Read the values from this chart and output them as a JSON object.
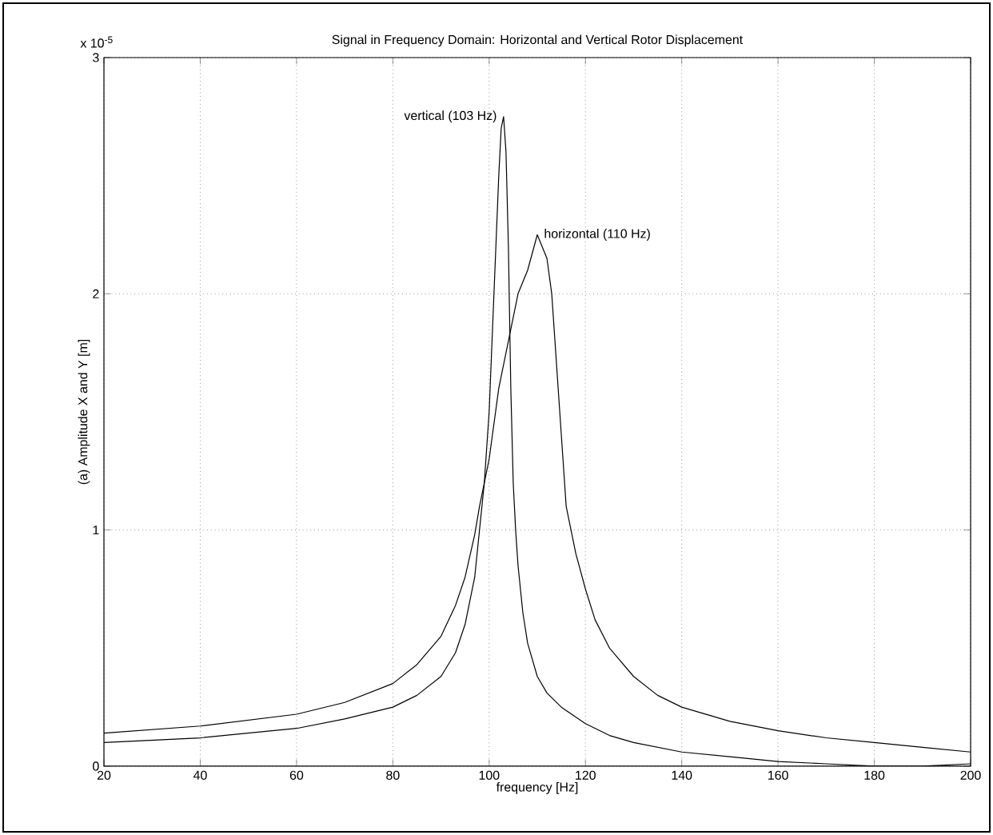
{
  "chart_data": {
    "type": "line",
    "title": "Signal in Frequency Domain:  Horizontal and Vertical Rotor Displacement",
    "xlabel": "frequency [Hz]",
    "ylabel": "(a) Amplitude X and Y [m]",
    "xlim": [
      20,
      200
    ],
    "xticks": [
      20,
      40,
      60,
      80,
      100,
      120,
      140,
      160,
      180,
      200
    ],
    "ylim": [
      0,
      3
    ],
    "yticks": [
      0,
      1,
      2,
      3
    ],
    "grid": true,
    "line_style": "solid",
    "annotations": [
      "x 10$^{-5}$",
      {
        "text": "vertical (103 Hz)",
        "x": 103,
        "y": 2.75
      },
      {
        "text": "horizontal (110 Hz)",
        "x": 110,
        "y": 2.25
      }
    ],
    "series": [
      {
        "color": "#000000",
        "x": [
          20,
          40,
          60,
          70,
          80,
          85,
          90,
          93,
          95,
          97,
          98,
          99,
          100,
          101,
          102,
          102.5,
          103,
          103.5,
          104,
          104.5,
          105,
          105.5,
          106,
          107,
          108,
          110,
          112,
          115,
          120,
          125,
          130,
          140,
          150,
          160,
          170,
          180,
          190,
          200
        ],
        "values": [
          0.1,
          0.12,
          0.16,
          0.2,
          0.25,
          0.3,
          0.38,
          0.48,
          0.6,
          0.8,
          1.0,
          1.2,
          1.5,
          2.0,
          2.5,
          2.7,
          2.75,
          2.6,
          2.2,
          1.6,
          1.2,
          1.0,
          0.85,
          0.65,
          0.52,
          0.38,
          0.31,
          0.25,
          0.18,
          0.13,
          0.1,
          0.06,
          0.04,
          0.02,
          0.01,
          0.0,
          0.0,
          0.01
        ]
      },
      {
        "color": "#000000",
        "x": [
          20,
          40,
          60,
          70,
          80,
          85,
          90,
          93,
          95,
          97,
          98,
          100,
          102,
          104,
          105,
          106,
          108,
          110,
          111,
          112,
          113,
          114,
          115,
          116,
          118,
          120,
          122,
          125,
          130,
          135,
          140,
          150,
          160,
          170,
          180,
          190,
          200
        ],
        "values": [
          0.14,
          0.17,
          0.22,
          0.27,
          0.35,
          0.43,
          0.55,
          0.68,
          0.8,
          0.98,
          1.1,
          1.3,
          1.6,
          1.8,
          1.9,
          2.0,
          2.1,
          2.25,
          2.2,
          2.15,
          2.0,
          1.7,
          1.4,
          1.1,
          0.9,
          0.75,
          0.62,
          0.5,
          0.38,
          0.3,
          0.25,
          0.19,
          0.15,
          0.12,
          0.1,
          0.08,
          0.06
        ]
      }
    ]
  }
}
